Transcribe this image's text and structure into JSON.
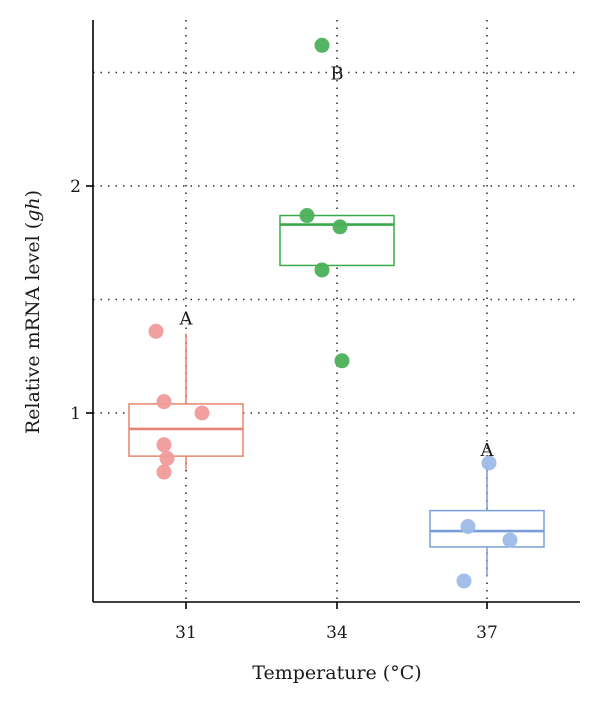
{
  "chart_data": {
    "type": "box",
    "xlabel": "Temperature (°C)",
    "ylabel_prefix": "Relative mRNA level (",
    "ylabel_italic": "gh",
    "ylabel_suffix": ")",
    "categories": [
      "31",
      "34",
      "37"
    ],
    "yticks": [
      1,
      2
    ],
    "ylim": [
      0.2,
      2.75
    ],
    "grid": true,
    "groups": [
      {
        "category": "31",
        "color": "#e8836f",
        "point_color": "#f09a9a",
        "box": {
          "whisker_low": 0.75,
          "q1": 0.81,
          "median": 0.93,
          "q3": 1.04,
          "whisker_high": 1.35
        },
        "points": [
          1.36,
          1.05,
          1.0,
          0.86,
          0.8,
          0.74
        ],
        "significance": "A"
      },
      {
        "category": "34",
        "color": "#3aaa4a",
        "point_color": "#4cb05a",
        "box": {
          "whisker_low": 1.65,
          "q1": 1.65,
          "median": 1.83,
          "q3": 1.87,
          "whisker_high": 1.87
        },
        "points": [
          2.62,
          1.87,
          1.82,
          1.63,
          1.23
        ],
        "significance": "B"
      },
      {
        "category": "37",
        "color": "#7a9ed8",
        "point_color": "#9dbbe8",
        "box": {
          "whisker_low": 0.28,
          "q1": 0.41,
          "median": 0.48,
          "q3": 0.57,
          "whisker_high": 0.77
        },
        "points": [
          0.78,
          0.5,
          0.44,
          0.26
        ],
        "significance": "A"
      }
    ]
  }
}
